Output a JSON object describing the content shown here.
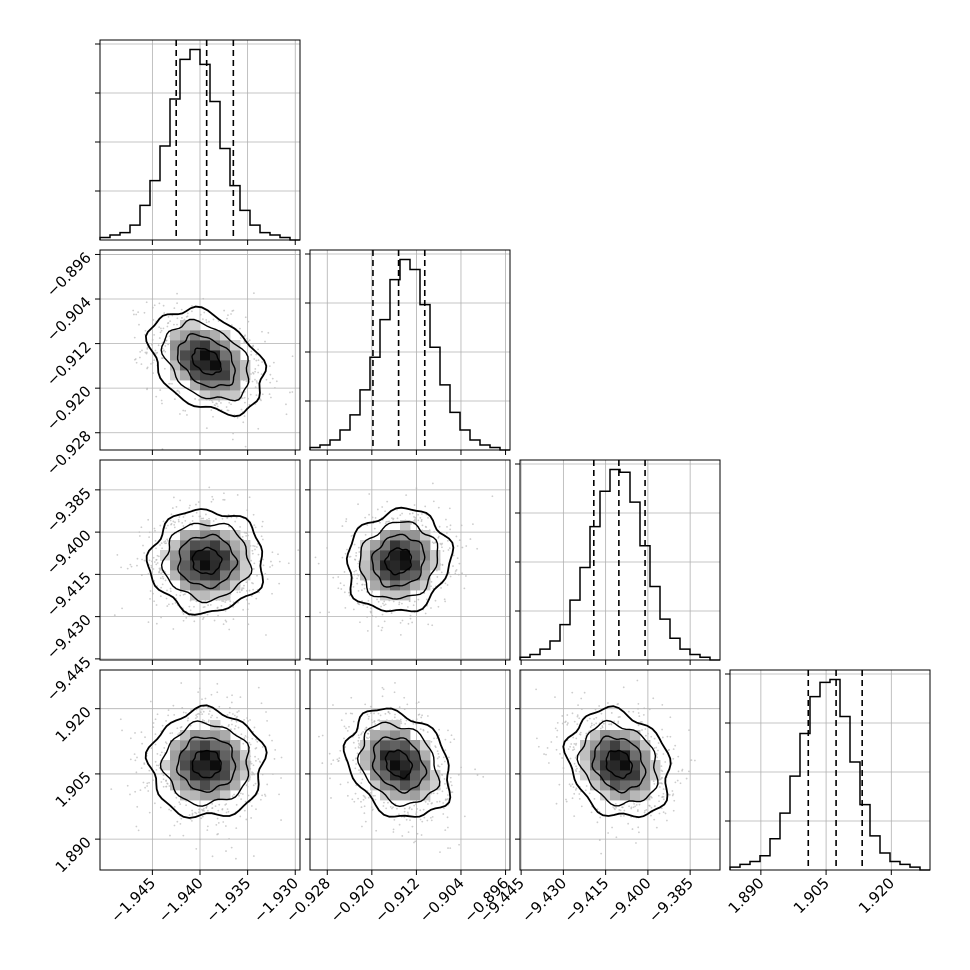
{
  "chart_data": {
    "type": "corner",
    "grid": true,
    "params": [
      {
        "range": [
          -1.9505,
          -1.9295
        ],
        "quantiles": [
          -1.9425,
          -1.9393,
          -1.9365
        ],
        "ticks": [
          -1.945,
          -1.94,
          -1.935,
          -1.93
        ],
        "tick_labels": [
          "−1.945",
          "−1.940",
          "−1.935",
          "−1.930"
        ]
      },
      {
        "range": [
          -0.9311,
          -0.8952
        ],
        "quantiles": [
          -0.9198,
          -0.9152,
          -0.9105
        ],
        "ticks": [
          -0.928,
          -0.92,
          -0.912,
          -0.904,
          -0.896
        ],
        "tick_labels": [
          "−0.928",
          "−0.920",
          "−0.912",
          "−0.904",
          "−0.896"
        ]
      },
      {
        "range": [
          -9.4454,
          -9.3744
        ],
        "quantiles": [
          -9.4192,
          -9.4103,
          -9.401
        ],
        "ticks": [
          -9.445,
          -9.43,
          -9.415,
          -9.4,
          -9.385
        ],
        "tick_labels": [
          "−9.445",
          "−9.430",
          "−9.415",
          "−9.400",
          "−9.385"
        ]
      },
      {
        "range": [
          1.8829,
          1.9289
        ],
        "quantiles": [
          1.9009,
          1.9073,
          1.9133
        ],
        "ticks": [
          1.89,
          1.905,
          1.92
        ],
        "tick_labels": [
          "1.890",
          "1.905",
          "1.920"
        ]
      }
    ],
    "histograms": [
      {
        "param": 0,
        "counts": [
          1,
          2,
          3,
          6,
          14,
          24,
          38,
          57,
          73,
          77,
          71,
          56,
          37,
          22,
          12,
          6,
          3,
          2,
          1,
          0
        ]
      },
      {
        "param": 1,
        "counts": [
          1,
          2,
          4,
          8,
          14,
          24,
          37,
          52,
          68,
          76,
          72,
          58,
          41,
          26,
          15,
          8,
          4,
          2,
          1,
          0
        ]
      },
      {
        "param": 2,
        "counts": [
          1,
          2,
          4,
          7,
          13,
          22,
          34,
          49,
          62,
          70,
          69,
          58,
          42,
          27,
          15,
          8,
          4,
          2,
          1,
          0
        ]
      },
      {
        "param": 3,
        "counts": [
          1,
          2,
          3,
          5,
          11,
          20,
          33,
          48,
          61,
          66,
          67,
          54,
          38,
          23,
          12,
          6,
          3,
          2,
          1,
          0
        ]
      }
    ],
    "pairs": [
      {
        "x": 0,
        "y": 1,
        "corr": -0.35
      },
      {
        "x": 0,
        "y": 2,
        "corr": 0.0
      },
      {
        "x": 1,
        "y": 2,
        "corr": 0.1
      },
      {
        "x": 0,
        "y": 3,
        "corr": 0.0
      },
      {
        "x": 1,
        "y": 3,
        "corr": -0.25
      },
      {
        "x": 2,
        "y": 3,
        "corr": -0.2
      }
    ],
    "contour_levels_sigma": [
      0.5,
      1.0,
      1.5,
      2.0
    ],
    "colors": {
      "line": "#000000",
      "grid": "#b0b0b0",
      "scatter": "#b8b8b8",
      "quantile": "#000000"
    }
  }
}
